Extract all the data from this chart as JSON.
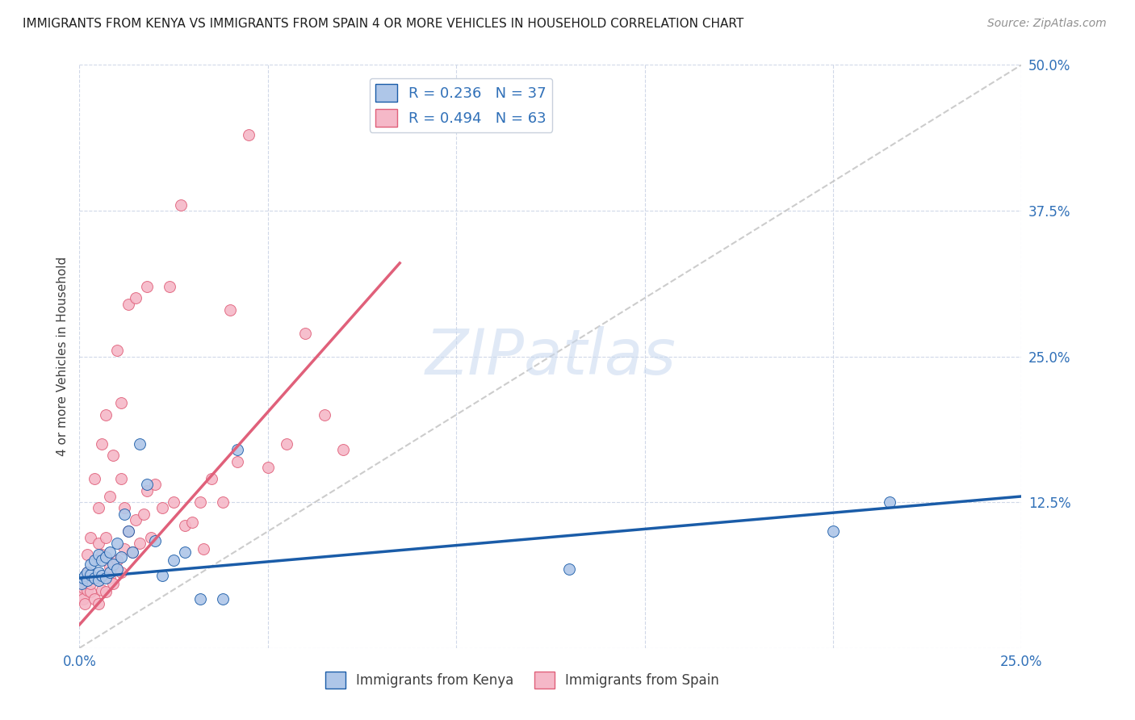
{
  "title": "IMMIGRANTS FROM KENYA VS IMMIGRANTS FROM SPAIN 4 OR MORE VEHICLES IN HOUSEHOLD CORRELATION CHART",
  "source": "Source: ZipAtlas.com",
  "ylabel": "4 or more Vehicles in Household",
  "xlim": [
    0.0,
    0.25
  ],
  "ylim": [
    0.0,
    0.5
  ],
  "xticks": [
    0.0,
    0.05,
    0.1,
    0.15,
    0.2,
    0.25
  ],
  "yticks": [
    0.0,
    0.125,
    0.25,
    0.375,
    0.5
  ],
  "xtick_labels": [
    "0.0%",
    "",
    "",
    "",
    "",
    "25.0%"
  ],
  "ytick_labels": [
    "",
    "12.5%",
    "25.0%",
    "37.5%",
    "50.0%"
  ],
  "kenya_color": "#aec6e8",
  "spain_color": "#f5b8c8",
  "kenya_R": 0.236,
  "kenya_N": 37,
  "spain_R": 0.494,
  "spain_N": 63,
  "kenya_line_color": "#1a5ca8",
  "spain_line_color": "#e0607a",
  "diagonal_color": "#c0c0c0",
  "watermark": "ZIPatlas",
  "kenya_x": [
    0.0005,
    0.001,
    0.0015,
    0.002,
    0.002,
    0.003,
    0.003,
    0.004,
    0.004,
    0.005,
    0.005,
    0.005,
    0.006,
    0.006,
    0.007,
    0.007,
    0.008,
    0.008,
    0.009,
    0.01,
    0.01,
    0.011,
    0.012,
    0.013,
    0.014,
    0.016,
    0.018,
    0.02,
    0.022,
    0.025,
    0.028,
    0.032,
    0.038,
    0.042,
    0.13,
    0.2,
    0.215
  ],
  "kenya_y": [
    0.055,
    0.06,
    0.062,
    0.058,
    0.065,
    0.063,
    0.072,
    0.06,
    0.075,
    0.058,
    0.065,
    0.08,
    0.062,
    0.075,
    0.06,
    0.078,
    0.065,
    0.082,
    0.072,
    0.068,
    0.09,
    0.078,
    0.115,
    0.1,
    0.082,
    0.175,
    0.14,
    0.092,
    0.062,
    0.075,
    0.082,
    0.042,
    0.042,
    0.17,
    0.068,
    0.1,
    0.125
  ],
  "spain_x": [
    0.0005,
    0.001,
    0.001,
    0.0015,
    0.002,
    0.002,
    0.002,
    0.003,
    0.003,
    0.003,
    0.004,
    0.004,
    0.005,
    0.005,
    0.005,
    0.005,
    0.006,
    0.006,
    0.006,
    0.007,
    0.007,
    0.007,
    0.008,
    0.008,
    0.008,
    0.009,
    0.009,
    0.01,
    0.01,
    0.011,
    0.011,
    0.011,
    0.012,
    0.012,
    0.013,
    0.013,
    0.014,
    0.015,
    0.015,
    0.016,
    0.017,
    0.018,
    0.018,
    0.019,
    0.02,
    0.022,
    0.024,
    0.025,
    0.027,
    0.028,
    0.03,
    0.032,
    0.033,
    0.035,
    0.038,
    0.04,
    0.042,
    0.045,
    0.05,
    0.055,
    0.06,
    0.065,
    0.07
  ],
  "spain_y": [
    0.045,
    0.052,
    0.042,
    0.038,
    0.05,
    0.065,
    0.08,
    0.048,
    0.095,
    0.055,
    0.042,
    0.145,
    0.038,
    0.06,
    0.09,
    0.12,
    0.05,
    0.08,
    0.175,
    0.048,
    0.095,
    0.2,
    0.06,
    0.13,
    0.07,
    0.055,
    0.165,
    0.075,
    0.255,
    0.065,
    0.145,
    0.21,
    0.085,
    0.12,
    0.1,
    0.295,
    0.082,
    0.11,
    0.3,
    0.09,
    0.115,
    0.135,
    0.31,
    0.095,
    0.14,
    0.12,
    0.31,
    0.125,
    0.38,
    0.105,
    0.108,
    0.125,
    0.085,
    0.145,
    0.125,
    0.29,
    0.16,
    0.44,
    0.155,
    0.175,
    0.27,
    0.2,
    0.17
  ],
  "kenya_line_x": [
    0.0,
    0.25
  ],
  "kenya_line_y": [
    0.06,
    0.13
  ],
  "spain_line_x": [
    0.0,
    0.085
  ],
  "spain_line_y": [
    0.02,
    0.33
  ]
}
